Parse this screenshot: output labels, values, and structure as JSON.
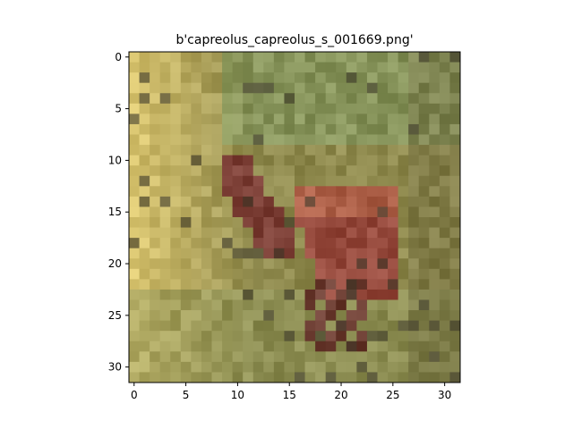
{
  "figure": {
    "title": "b'capreolus_capreolus_s_001669.png'"
  },
  "image": {
    "subject": "roe deer in grass",
    "grid_size": [
      32,
      32
    ],
    "palette": {
      "sky_green": "#7f9a63",
      "grass_yellow": "#d8c46f",
      "olive": "#8f8a4e",
      "deer_red": "#8a3f38",
      "deer_orange": "#b86a4a",
      "shadow": "#3e3a2a"
    }
  },
  "axes": {
    "x_ticks": [
      "0",
      "5",
      "10",
      "15",
      "20",
      "25",
      "30"
    ],
    "y_ticks": [
      "0",
      "5",
      "10",
      "15",
      "20",
      "25",
      "30"
    ],
    "x_tick_values": [
      0,
      5,
      10,
      15,
      20,
      25,
      30
    ],
    "y_tick_values": [
      0,
      5,
      10,
      15,
      20,
      25,
      30
    ]
  }
}
